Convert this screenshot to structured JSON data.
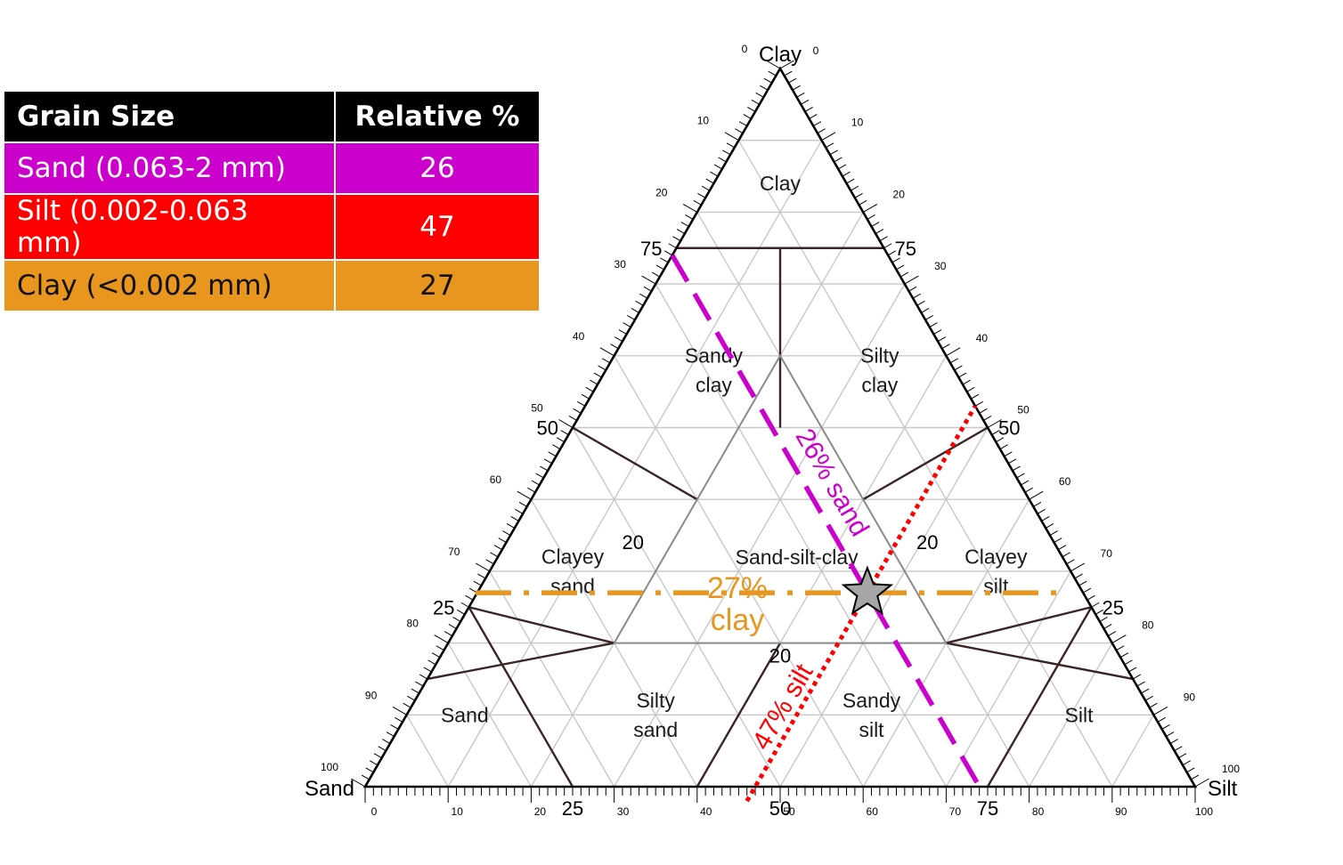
{
  "table": {
    "headers": [
      "Grain Size",
      "Relative %"
    ],
    "rows": [
      {
        "label": "Sand (0.063-2 mm)",
        "value": "26",
        "color": "#cc00cc"
      },
      {
        "label": "Silt (0.002-0.063 mm)",
        "value": "47",
        "color": "#ff0000"
      },
      {
        "label": "Clay (<0.002 mm)",
        "value": "27",
        "color": "#e8961e"
      }
    ],
    "header_color": "#000000"
  },
  "ternary": {
    "apex_labels": {
      "clay": "Clay",
      "sand": "Sand",
      "silt": "Silt"
    },
    "left_ticks": [
      {
        "t": 0,
        "text": "100"
      },
      {
        "t": 10,
        "text": "90"
      },
      {
        "t": 20,
        "text": "80"
      },
      {
        "t": 30,
        "text": "70"
      },
      {
        "t": 40,
        "text": "60"
      },
      {
        "t": 50,
        "text": "50"
      },
      {
        "t": 60,
        "text": "40"
      },
      {
        "t": 70,
        "text": "30"
      },
      {
        "t": 80,
        "text": "20"
      },
      {
        "t": 90,
        "text": "10"
      },
      {
        "t": 100,
        "text": "0"
      }
    ],
    "right_ticks": [
      {
        "t": 0,
        "text": "0"
      },
      {
        "t": 10,
        "text": "10"
      },
      {
        "t": 20,
        "text": "20"
      },
      {
        "t": 30,
        "text": "30"
      },
      {
        "t": 40,
        "text": "40"
      },
      {
        "t": 50,
        "text": "50"
      },
      {
        "t": 60,
        "text": "60"
      },
      {
        "t": 70,
        "text": "70"
      },
      {
        "t": 80,
        "text": "80"
      },
      {
        "t": 90,
        "text": "90"
      },
      {
        "t": 100,
        "text": "100"
      }
    ],
    "bottom_ticks": [
      {
        "t": 0,
        "text": "0"
      },
      {
        "t": 10,
        "text": "10"
      },
      {
        "t": 20,
        "text": "20"
      },
      {
        "t": 30,
        "text": "30"
      },
      {
        "t": 40,
        "text": "40"
      },
      {
        "t": 50,
        "text": "50"
      },
      {
        "t": 60,
        "text": "60"
      },
      {
        "t": 70,
        "text": "70"
      },
      {
        "t": 80,
        "text": "80"
      },
      {
        "t": 90,
        "text": "90"
      },
      {
        "t": 100,
        "text": "100"
      }
    ],
    "major_left": [
      {
        "t": 25,
        "text": "25"
      },
      {
        "t": 50,
        "text": "50"
      },
      {
        "t": 75,
        "text": "75"
      }
    ],
    "major_right": [
      {
        "t": 25,
        "text": "25"
      },
      {
        "t": 50,
        "text": "50"
      },
      {
        "t": 75,
        "text": "75"
      }
    ],
    "major_bottom": [
      {
        "t": 25,
        "text": "25"
      },
      {
        "t": 50,
        "text": "50"
      },
      {
        "t": 75,
        "text": "75"
      }
    ],
    "inner_labels": [
      "20",
      "20",
      "20"
    ],
    "regions": [
      {
        "name": "clay",
        "lines": [
          "Clay"
        ]
      },
      {
        "name": "sandy-clay",
        "lines": [
          "Sandy",
          "clay"
        ]
      },
      {
        "name": "silty-clay",
        "lines": [
          "Silty",
          "clay"
        ]
      },
      {
        "name": "clayey-sand",
        "lines": [
          "Clayey",
          "sand"
        ]
      },
      {
        "name": "sand-silt-clay",
        "lines": [
          "Sand-silt-clay"
        ]
      },
      {
        "name": "clayey-silt",
        "lines": [
          "Clayey",
          "silt"
        ]
      },
      {
        "name": "sand",
        "lines": [
          "Sand"
        ]
      },
      {
        "name": "silty-sand",
        "lines": [
          "Silty",
          "sand"
        ]
      },
      {
        "name": "sandy-silt",
        "lines": [
          "Sandy",
          "silt"
        ]
      },
      {
        "name": "silt",
        "lines": [
          "Silt"
        ]
      }
    ],
    "sample": {
      "sand": 26,
      "silt": 47,
      "clay": 27
    },
    "annotations": {
      "sand": "26% sand",
      "silt": "47% silt",
      "clay_lines": [
        "27%",
        "clay"
      ]
    },
    "colors": {
      "outline": "#000000",
      "boundary": "#3a2525",
      "grid": "#c8c8c8",
      "sand_line": "#cc00cc",
      "silt_line": "#ff0000",
      "clay_line": "#e8961e",
      "star_fill": "#a6a6a6"
    }
  }
}
